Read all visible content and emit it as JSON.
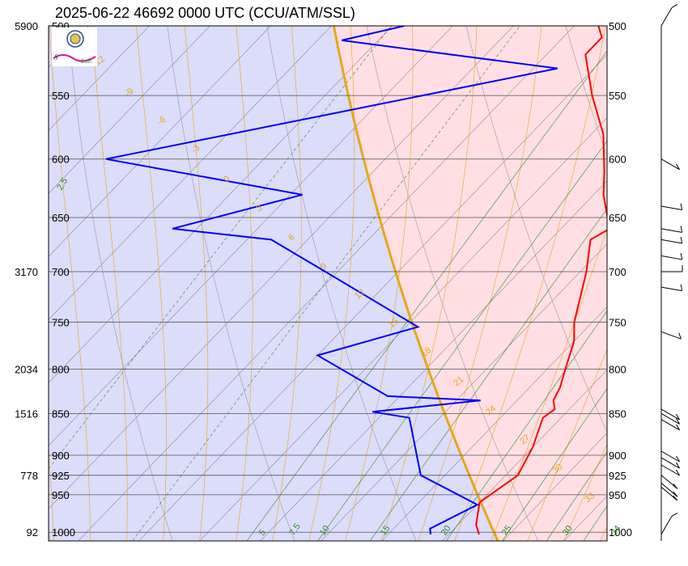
{
  "header": {
    "title": "2025-06-22 46692 0000 UTC (CCU/ATM/SSL)"
  },
  "logo": {
    "text": "Severe Storms Lab."
  },
  "colors": {
    "stable_fill": "#ffdfe3",
    "unstable_fill": "#dcdcfb",
    "temperature": "#ff0000",
    "dewpoint": "#0000ff",
    "dry_adiabat_highlight": "#e6a817",
    "isotherm": "#555555",
    "moist_adiabat": "#e6a817",
    "mixing_ratio": "#2e8b2e",
    "isobar": "#555555"
  },
  "chart_data": {
    "type": "skew-t",
    "title": "2025-06-22 46692 0000 UTC (CCU/ATM/SSL)",
    "pressure_levels": [
      500,
      550,
      600,
      650,
      700,
      750,
      800,
      850,
      900,
      925,
      950,
      1000
    ],
    "pressure_labels_right": [
      "500",
      "550",
      "600",
      "650",
      "700",
      "750",
      "800",
      "850",
      "900",
      "925",
      "950",
      "1000"
    ],
    "heights": [
      {
        "p": 500,
        "label": "5900"
      },
      {
        "p": 700,
        "label": "3170"
      },
      {
        "p": 800,
        "label": "2034"
      },
      {
        "p": 850,
        "label": "1516"
      },
      {
        "p": 925,
        "label": "778"
      },
      {
        "p": 1000,
        "label": "92"
      }
    ],
    "temperature_profile": [
      {
        "p": 1003,
        "t": 22.5
      },
      {
        "p": 990,
        "t": 21.5
      },
      {
        "p": 960,
        "t": 20.0
      },
      {
        "p": 925,
        "t": 21.0
      },
      {
        "p": 890,
        "t": 20.0
      },
      {
        "p": 855,
        "t": 18.5
      },
      {
        "p": 845,
        "t": 18.8
      },
      {
        "p": 835,
        "t": 18.0
      },
      {
        "p": 820,
        "t": 17.5
      },
      {
        "p": 800,
        "t": 16.5
      },
      {
        "p": 770,
        "t": 15.0
      },
      {
        "p": 750,
        "t": 13.5
      },
      {
        "p": 700,
        "t": 10.5
      },
      {
        "p": 670,
        "t": 8.3
      },
      {
        "p": 660,
        "t": 9.0
      },
      {
        "p": 630,
        "t": 5.8
      },
      {
        "p": 610,
        "t": 4.0
      },
      {
        "p": 580,
        "t": 1.0
      },
      {
        "p": 550,
        "t": -3.0
      },
      {
        "p": 520,
        "t": -6.8
      },
      {
        "p": 508,
        "t": -6.8
      },
      {
        "p": 500,
        "t": -8.0
      }
    ],
    "dewpoint_profile": [
      {
        "p": 1003,
        "td": 18.5
      },
      {
        "p": 995,
        "td": 18.0
      },
      {
        "p": 963,
        "td": 20.0
      },
      {
        "p": 925,
        "td": 13.0
      },
      {
        "p": 855,
        "td": 7.5
      },
      {
        "p": 848,
        "td": 4.0
      },
      {
        "p": 835,
        "td": 12.0
      },
      {
        "p": 830,
        "td": 4.0
      },
      {
        "p": 785,
        "td": -5.0
      },
      {
        "p": 755,
        "td": 1.0
      },
      {
        "p": 700,
        "td": -11.0
      },
      {
        "p": 670,
        "td": -18.0
      },
      {
        "p": 660,
        "td": -27.0
      },
      {
        "p": 630,
        "td": -19.0
      },
      {
        "p": 600,
        "td": -38.0
      },
      {
        "p": 530,
        "td": -8.0
      },
      {
        "p": 510,
        "td": -28.0
      },
      {
        "p": 500,
        "td": -24.0
      }
    ],
    "temperature_ticks": [
      5,
      7.5,
      10,
      15,
      20,
      25,
      30,
      34
    ],
    "mixing_ratio_labels": [
      "2.5"
    ],
    "moist_adiabat_labels": [
      "-12",
      "-9",
      "-6",
      "-3",
      "0",
      "3",
      "6",
      "9",
      "12",
      "15",
      "18",
      "21",
      "24",
      "27",
      "30",
      "33"
    ],
    "wind_barbs": [
      {
        "p": 500,
        "dir": 330,
        "spd": 10
      },
      {
        "p": 600,
        "dir": 240,
        "spd": 10
      },
      {
        "p": 640,
        "dir": 260,
        "spd": 10
      },
      {
        "p": 660,
        "dir": 260,
        "spd": 10
      },
      {
        "p": 670,
        "dir": 260,
        "spd": 10
      },
      {
        "p": 685,
        "dir": 260,
        "spd": 10
      },
      {
        "p": 700,
        "dir": 270,
        "spd": 10
      },
      {
        "p": 715,
        "dir": 260,
        "spd": 10
      },
      {
        "p": 760,
        "dir": 250,
        "spd": 10
      },
      {
        "p": 845,
        "dir": 240,
        "spd": 10
      },
      {
        "p": 850,
        "dir": 240,
        "spd": 10
      },
      {
        "p": 857,
        "dir": 240,
        "spd": 10
      },
      {
        "p": 895,
        "dir": 240,
        "spd": 10
      },
      {
        "p": 903,
        "dir": 240,
        "spd": 10
      },
      {
        "p": 912,
        "dir": 240,
        "spd": 10
      },
      {
        "p": 925,
        "dir": 230,
        "spd": 10
      },
      {
        "p": 935,
        "dir": 230,
        "spd": 10
      },
      {
        "p": 940,
        "dir": 230,
        "spd": 10
      },
      {
        "p": 1003,
        "dir": 330,
        "spd": 10
      }
    ]
  }
}
